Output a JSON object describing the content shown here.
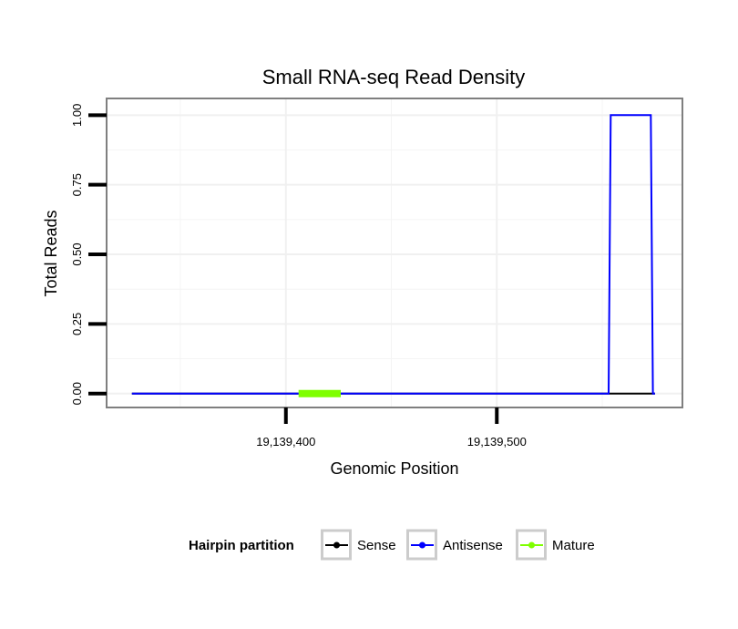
{
  "chart_data": {
    "type": "line",
    "title": "Small RNA-seq Read Density",
    "xlabel": "Genomic Position",
    "ylabel": "Total Reads",
    "xlim": [
      19139315,
      19139588
    ],
    "ylim": [
      -0.05,
      1.06
    ],
    "x_ticks": [
      {
        "value": 19139400,
        "label": "19,139,400"
      },
      {
        "value": 19139500,
        "label": "19,139,500"
      }
    ],
    "y_ticks": [
      {
        "value": 0.0,
        "label": "0.00"
      },
      {
        "value": 0.25,
        "label": "0.25"
      },
      {
        "value": 0.5,
        "label": "0.50"
      },
      {
        "value": 0.75,
        "label": "0.75"
      },
      {
        "value": 1.0,
        "label": "1.00"
      }
    ],
    "minor_x_grid": [
      19139350,
      19139450,
      19139550
    ],
    "minor_y_grid": [
      0.125,
      0.375,
      0.625,
      0.875
    ],
    "grid": true,
    "legend": {
      "title": "Hairpin partition",
      "position": "bottom",
      "entries": [
        {
          "name": "Sense",
          "color": "#000000"
        },
        {
          "name": "Antisense",
          "color": "#0000ff"
        },
        {
          "name": "Mature",
          "color": "#7fff00"
        }
      ]
    },
    "series": [
      {
        "name": "Sense",
        "color": "#000000",
        "points": [
          [
            19139327,
            0
          ],
          [
            19139575,
            0
          ]
        ]
      },
      {
        "name": "Antisense",
        "color": "#0000ff",
        "points": [
          [
            19139327,
            0
          ],
          [
            19139553,
            0
          ],
          [
            19139554,
            1
          ],
          [
            19139573,
            1
          ],
          [
            19139574,
            0
          ],
          [
            19139575,
            0
          ]
        ]
      },
      {
        "name": "Mature",
        "color": "#7fff00",
        "points": [
          [
            19139406,
            0
          ],
          [
            19139426,
            0
          ]
        ]
      }
    ]
  }
}
